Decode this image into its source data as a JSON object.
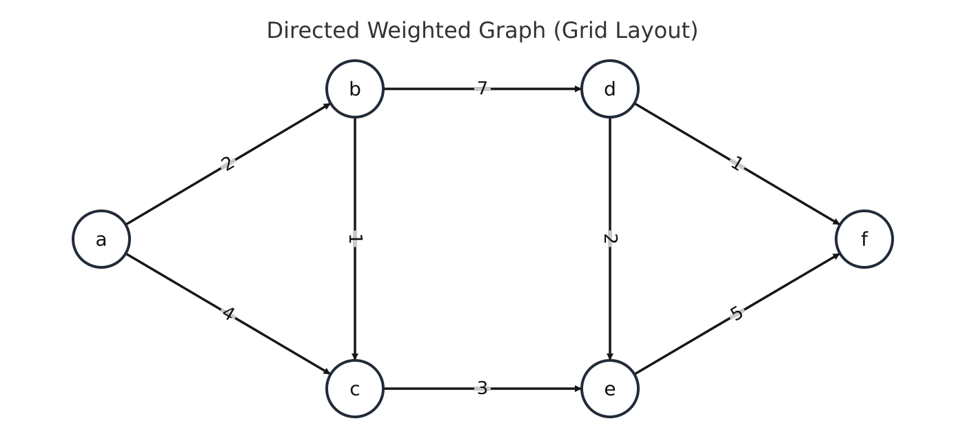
{
  "title": "Directed Weighted Graph (Grid Layout)",
  "colors": {
    "node_stroke": "#222b38",
    "node_fill": "#ffffff",
    "edge": "#161616",
    "label_bg": "#c8c8c8",
    "label_text": "#111111"
  },
  "nodes": [
    {
      "id": "a",
      "label": "a"
    },
    {
      "id": "b",
      "label": "b"
    },
    {
      "id": "c",
      "label": "c"
    },
    {
      "id": "d",
      "label": "d"
    },
    {
      "id": "e",
      "label": "e"
    },
    {
      "id": "f",
      "label": "f"
    }
  ],
  "edges": [
    {
      "from": "a",
      "to": "b",
      "weight": "2"
    },
    {
      "from": "a",
      "to": "c",
      "weight": "4"
    },
    {
      "from": "b",
      "to": "d",
      "weight": "7"
    },
    {
      "from": "b",
      "to": "c",
      "weight": "1"
    },
    {
      "from": "c",
      "to": "e",
      "weight": "3"
    },
    {
      "from": "d",
      "to": "e",
      "weight": "2"
    },
    {
      "from": "d",
      "to": "f",
      "weight": "1"
    },
    {
      "from": "e",
      "to": "f",
      "weight": "5"
    }
  ]
}
